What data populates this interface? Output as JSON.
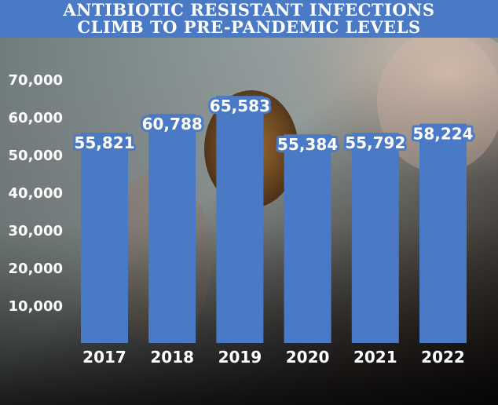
{
  "title": {
    "line1": "ANTIBIOTIC RESISTANT INFECTIONS",
    "line2": "CLIMB TO PRE-PANDEMIC LEVELS"
  },
  "colors": {
    "title_band": "#4a79c6",
    "bar": "#4a79c6",
    "label_text": "#ffffff",
    "tick_text": "#ffffff"
  },
  "chart_data": {
    "type": "bar",
    "categories": [
      "2017",
      "2018",
      "2019",
      "2020",
      "2021",
      "2022"
    ],
    "values": [
      55821,
      60788,
      65583,
      55384,
      55792,
      58224
    ],
    "data_labels": [
      "55,821",
      "60,788",
      "65,583",
      "55,384",
      "55,792",
      "58,224"
    ],
    "yticks": [
      "10,000",
      "20,000",
      "30,000",
      "40,000",
      "50,000",
      "60,000",
      "70,000"
    ],
    "ytick_values": [
      10000,
      20000,
      30000,
      40000,
      50000,
      60000,
      70000
    ],
    "ylim": [
      0,
      70000
    ],
    "grid": false,
    "legend": "none",
    "title": "ANTIBIOTIC RESISTANT INFECTIONS CLIMB TO PRE-PANDEMIC LEVELS",
    "xlabel": "",
    "ylabel": ""
  }
}
